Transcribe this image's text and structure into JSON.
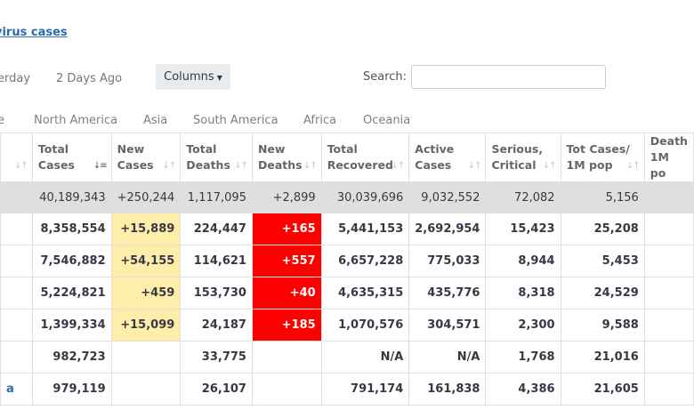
{
  "header": {
    "title_link": "virus cases"
  },
  "nav": {
    "yesterday": "erday",
    "two_days": "2 Days Ago",
    "columns": "Columns",
    "columns_caret": "▼"
  },
  "search": {
    "label": "Search:",
    "value": "",
    "placeholder": ""
  },
  "regions": [
    "e",
    "North America",
    "Asia",
    "South America",
    "Africa",
    "Oceania"
  ],
  "table": {
    "headers": [
      {
        "l1": "",
        "l2": ""
      },
      {
        "l1": "Total",
        "l2": "Cases"
      },
      {
        "l1": "New",
        "l2": "Cases"
      },
      {
        "l1": "Total",
        "l2": "Deaths"
      },
      {
        "l1": "New",
        "l2": "Deaths"
      },
      {
        "l1": "Total",
        "l2": "Recovered"
      },
      {
        "l1": "Active",
        "l2": "Cases"
      },
      {
        "l1": "Serious,",
        "l2": "Critical"
      },
      {
        "l1": "Tot Cases/",
        "l2": "1M pop"
      },
      {
        "l1": "Death",
        "l2": "1M po"
      }
    ],
    "total_row": [
      "",
      "40,189,343",
      "+250,244",
      "1,117,095",
      "+2,899",
      "30,039,696",
      "9,032,552",
      "72,082",
      "5,156",
      ""
    ],
    "rows": [
      [
        "",
        "8,358,554",
        "+15,889",
        "224,447",
        "+165",
        "5,441,153",
        "2,692,954",
        "15,423",
        "25,208",
        ""
      ],
      [
        "",
        "7,546,882",
        "+54,155",
        "114,621",
        "+557",
        "6,657,228",
        "775,033",
        "8,944",
        "5,453",
        ""
      ],
      [
        "",
        "5,224,821",
        "+459",
        "153,730",
        "+40",
        "4,635,315",
        "435,776",
        "8,318",
        "24,529",
        ""
      ],
      [
        "",
        "1,399,334",
        "+15,099",
        "24,187",
        "+185",
        "1,070,576",
        "304,571",
        "2,300",
        "9,588",
        ""
      ],
      [
        "",
        "982,723",
        "",
        "33,775",
        "",
        "N/A",
        "N/A",
        "1,768",
        "21,016",
        ""
      ],
      [
        "a",
        "979,119",
        "",
        "26,107",
        "",
        "791,174",
        "161,838",
        "4,386",
        "21,605",
        ""
      ]
    ]
  }
}
